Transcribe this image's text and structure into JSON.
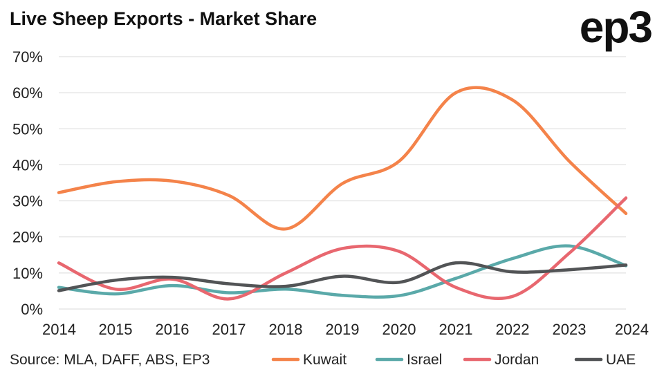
{
  "header": {
    "title": "Live Sheep Exports - Market Share",
    "logo_text": "ep3"
  },
  "footer": {
    "source": "Source: MLA, DAFF, ABS, EP3"
  },
  "chart_data": {
    "type": "line",
    "title": "Live Sheep Exports - Market Share",
    "xlabel": "",
    "ylabel": "",
    "x": [
      "2014",
      "2015",
      "2016",
      "2017",
      "2018",
      "2019",
      "2020",
      "2021",
      "2022",
      "2023",
      "2024"
    ],
    "ylim": [
      0,
      70
    ],
    "y_ticks": [
      0,
      10,
      20,
      30,
      40,
      50,
      60,
      70
    ],
    "y_tick_labels": [
      "0%",
      "10%",
      "20%",
      "30%",
      "40%",
      "50%",
      "60%",
      "70%"
    ],
    "grid": true,
    "legend_position": "bottom",
    "series": [
      {
        "name": "Kuwait",
        "color": "#f4834a",
        "values": [
          32.3,
          35.3,
          35.5,
          31.5,
          22.2,
          34.8,
          41.0,
          60.0,
          58.0,
          41.0,
          26.5
        ]
      },
      {
        "name": "Israel",
        "color": "#5aa9a9",
        "values": [
          6.0,
          4.2,
          6.5,
          4.5,
          5.5,
          3.8,
          3.7,
          8.5,
          14.0,
          17.5,
          12.0
        ]
      },
      {
        "name": "Jordan",
        "color": "#e8676f",
        "values": [
          12.8,
          5.5,
          8.3,
          2.8,
          10.0,
          16.8,
          16.0,
          6.0,
          3.5,
          15.5,
          30.8
        ]
      },
      {
        "name": "UAE",
        "color": "#525456",
        "values": [
          5.1,
          8.0,
          8.8,
          7.0,
          6.3,
          9.1,
          7.4,
          12.8,
          10.3,
          10.9,
          12.2
        ]
      }
    ]
  }
}
